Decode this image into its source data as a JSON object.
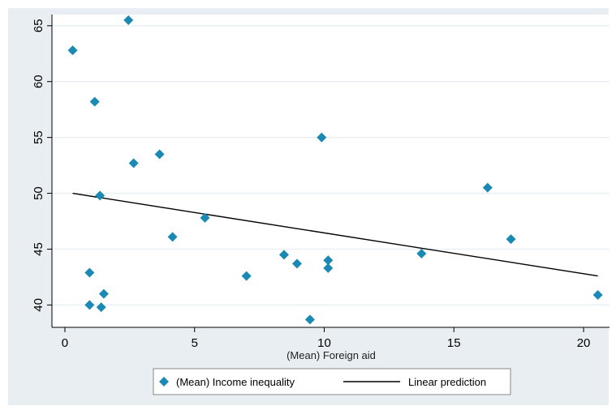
{
  "chart_data": {
    "type": "scatter",
    "title": "",
    "xlabel": "(Mean) Foreign aid",
    "ylabel": "",
    "xlim": [
      -0.5,
      21
    ],
    "ylim": [
      38,
      66
    ],
    "grid": true,
    "legend_position": "bottom",
    "xticks": [
      0,
      5,
      10,
      15,
      20
    ],
    "yticks": [
      40,
      45,
      50,
      55,
      60,
      65
    ],
    "series": [
      {
        "name": "(Mean) Income inequality",
        "marker": "diamond",
        "color": "#1a8ab4",
        "points": [
          {
            "x": 0.3,
            "y": 62.8
          },
          {
            "x": 2.45,
            "y": 65.5
          },
          {
            "x": 1.15,
            "y": 58.2
          },
          {
            "x": 3.65,
            "y": 53.5
          },
          {
            "x": 2.65,
            "y": 52.7
          },
          {
            "x": 1.35,
            "y": 49.8
          },
          {
            "x": 5.4,
            "y": 47.8
          },
          {
            "x": 4.15,
            "y": 46.1
          },
          {
            "x": 0.95,
            "y": 42.9
          },
          {
            "x": 0.95,
            "y": 40.0
          },
          {
            "x": 1.4,
            "y": 39.8
          },
          {
            "x": 1.5,
            "y": 41.0
          },
          {
            "x": 7.0,
            "y": 42.6
          },
          {
            "x": 8.45,
            "y": 44.5
          },
          {
            "x": 8.95,
            "y": 43.7
          },
          {
            "x": 9.45,
            "y": 38.7
          },
          {
            "x": 9.9,
            "y": 55.0
          },
          {
            "x": 10.15,
            "y": 44.0
          },
          {
            "x": 10.15,
            "y": 43.3
          },
          {
            "x": 13.75,
            "y": 44.6
          },
          {
            "x": 16.3,
            "y": 50.5
          },
          {
            "x": 17.2,
            "y": 45.9
          },
          {
            "x": 20.55,
            "y": 40.9
          }
        ]
      },
      {
        "name": "Linear prediction",
        "type": "line",
        "color": "#000000",
        "points": [
          {
            "x": 0.3,
            "y": 50.0
          },
          {
            "x": 20.55,
            "y": 42.6
          }
        ]
      }
    ]
  },
  "colors": {
    "outer_background": "#e8eef1",
    "plot_background": "#ffffff",
    "grid": "#e9eff2",
    "marker": "#1a8ab4",
    "line": "#000000"
  }
}
